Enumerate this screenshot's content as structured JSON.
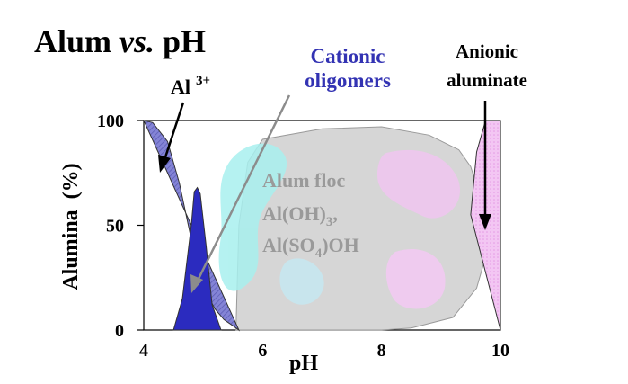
{
  "title_parts": {
    "a": "Alum ",
    "b": "vs.",
    "c": " pH"
  },
  "chart_data": {
    "type": "area",
    "xlabel": "pH",
    "ylabel": "Alumina  (%)",
    "xlim": [
      4,
      10
    ],
    "ylim": [
      0,
      100
    ],
    "xticks": [
      "4",
      "6",
      "8",
      "10"
    ],
    "yticks": [
      "0",
      "50",
      "100"
    ],
    "regions": [
      {
        "key": "al3",
        "label": "Al",
        "superscript": "3+",
        "color": "#6f6fcf",
        "x": [
          4.0,
          4.15,
          4.4,
          4.6,
          4.75,
          4.9,
          5.05,
          5.2,
          5.35,
          5.5,
          5.6
        ],
        "y": [
          100,
          99,
          90,
          70,
          50,
          30,
          18,
          10,
          5,
          2,
          0
        ]
      },
      {
        "key": "oligomers",
        "label": "Cationic\noligomers",
        "color": "#2b2bbf",
        "x": [
          4.5,
          4.65,
          4.8,
          4.85,
          4.9,
          4.95,
          5.05,
          5.15,
          5.3
        ],
        "y": [
          0,
          15,
          50,
          66,
          68,
          65,
          40,
          12,
          0
        ]
      },
      {
        "key": "floc",
        "label_lines": [
          "Alum floc",
          "Al(OH)",
          "Al(SO",
          "OH"
        ],
        "subscripts": [
          "3",
          "4",
          ")"
        ],
        "color": "#d6d6d6",
        "x": [
          5.55,
          5.6,
          5.75,
          6.0,
          7.0,
          8.0,
          8.8,
          9.3,
          9.5,
          9.7,
          9.8,
          9.6,
          9.2,
          8.5,
          8.0,
          7.0,
          6.0,
          5.7
        ],
        "y": [
          0,
          50,
          80,
          91,
          96,
          97,
          93,
          86,
          78,
          60,
          40,
          20,
          6,
          1,
          0,
          0,
          0,
          0
        ]
      },
      {
        "key": "aluminate",
        "label": "Anionic\naluminate",
        "color": "#f2c8f2",
        "x": [
          9.5,
          9.6,
          9.75,
          9.9,
          10.0,
          10.0
        ],
        "y": [
          55,
          85,
          100,
          100,
          100,
          0
        ]
      }
    ],
    "annotations": [
      {
        "text": "Al",
        "sup": "3+"
      },
      {
        "text": "Cationic"
      },
      {
        "text": "oligomers"
      },
      {
        "text": "Anionic"
      },
      {
        "text": "aluminate"
      }
    ]
  }
}
